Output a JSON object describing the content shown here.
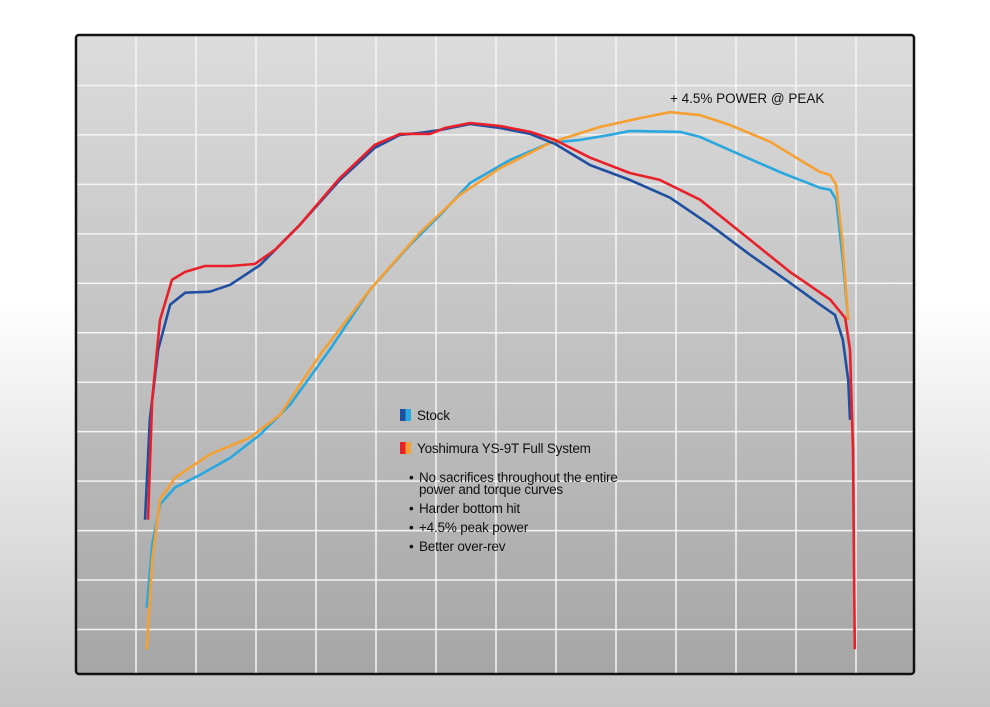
{
  "chart_data": {
    "type": "line",
    "annotation": "+ 4.5% POWER @ PEAK",
    "xlim": [
      -1,
      13
    ],
    "ylim": [
      -0.9,
      12
    ],
    "xticks": [
      0,
      1,
      2,
      3,
      4,
      5,
      6,
      7,
      8,
      9,
      10,
      11,
      12
    ],
    "yticks": [
      0,
      1,
      2,
      3,
      4,
      5,
      6,
      7,
      8,
      9,
      10,
      11
    ],
    "grid": true,
    "legend": [
      {
        "name": "Stock",
        "colors": [
          "#1f4fa0",
          "#29a8e0"
        ]
      },
      {
        "name": "Yoshimura YS-9T Full System",
        "colors": [
          "#e8202a",
          "#f5a031"
        ]
      }
    ],
    "notes": [
      "No sacrifices throughout the entire power and torque curves",
      "Harder bottom hit",
      "+4.5% peak power",
      "Better over-rev"
    ],
    "series": [
      {
        "color": "#29a8e0",
        "x": [
          0.18,
          0.27,
          0.4,
          0.65,
          1.07,
          1.57,
          2.07,
          2.57,
          3.23,
          3.9,
          4.57,
          5.07,
          5.57,
          6.23,
          6.9,
          7.4,
          7.9,
          8.23,
          9.07,
          9.4,
          10.07,
          10.73,
          11.15,
          11.4,
          11.57,
          11.67,
          11.78,
          11.87
        ],
        "values": [
          0.44,
          1.72,
          2.53,
          2.87,
          3.13,
          3.47,
          3.94,
          4.55,
          5.66,
          6.87,
          7.78,
          8.38,
          9.03,
          9.49,
          9.84,
          9.9,
          10,
          10.08,
          10.06,
          9.96,
          9.6,
          9.25,
          9.05,
          8.93,
          8.89,
          8.69,
          7.47,
          6.26
        ]
      },
      {
        "color": "#f5a031",
        "x": [
          0.18,
          0.27,
          0.4,
          0.65,
          1.23,
          1.9,
          2.4,
          3.07,
          3.9,
          4.73,
          5.4,
          6.07,
          6.9,
          7.73,
          8.4,
          8.9,
          9.4,
          9.9,
          10.57,
          11.07,
          11.4,
          11.57,
          11.67,
          11.77,
          11.87
        ],
        "values": [
          -0.4,
          1.41,
          2.63,
          3.07,
          3.54,
          3.88,
          4.34,
          5.56,
          6.87,
          8.02,
          8.79,
          9.33,
          9.84,
          10.16,
          10.34,
          10.46,
          10.4,
          10.2,
          9.86,
          9.49,
          9.25,
          9.19,
          8.99,
          7.88,
          6.26
        ]
      },
      {
        "color": "#1f4fa0",
        "x": [
          0.15,
          0.23,
          0.37,
          0.57,
          0.82,
          1.23,
          1.57,
          2.07,
          2.73,
          3.4,
          3.98,
          4.4,
          4.73,
          5.07,
          5.57,
          6.07,
          6.57,
          6.98,
          7.57,
          8.23,
          8.9,
          9.57,
          10.23,
          10.9,
          11.4,
          11.65,
          11.78,
          11.87,
          11.9
        ],
        "values": [
          2.22,
          4.24,
          5.66,
          6.57,
          6.81,
          6.83,
          6.97,
          7.37,
          8.18,
          9.09,
          9.74,
          10,
          10.04,
          10.1,
          10.22,
          10.14,
          10.02,
          9.82,
          9.39,
          9.09,
          8.73,
          8.18,
          7.58,
          7.01,
          6.57,
          6.36,
          5.86,
          5.05,
          4.24
        ]
      },
      {
        "color": "#e8202a",
        "x": [
          0.2,
          0.27,
          0.4,
          0.6,
          0.82,
          1.15,
          1.57,
          1.98,
          2.32,
          2.73,
          3.4,
          3.98,
          4.4,
          4.9,
          5.15,
          5.57,
          6.07,
          6.57,
          6.98,
          7.57,
          8.23,
          8.73,
          9.4,
          10.07,
          10.9,
          11.57,
          11.82,
          11.9,
          11.95,
          11.98
        ],
        "values": [
          2.22,
          4.65,
          6.26,
          7.07,
          7.23,
          7.35,
          7.35,
          7.39,
          7.68,
          8.18,
          9.13,
          9.8,
          10.02,
          10.02,
          10.14,
          10.24,
          10.18,
          10.06,
          9.9,
          9.54,
          9.23,
          9.09,
          8.69,
          8.04,
          7.23,
          6.67,
          6.3,
          5.66,
          3.64,
          -0.4
        ]
      }
    ]
  }
}
